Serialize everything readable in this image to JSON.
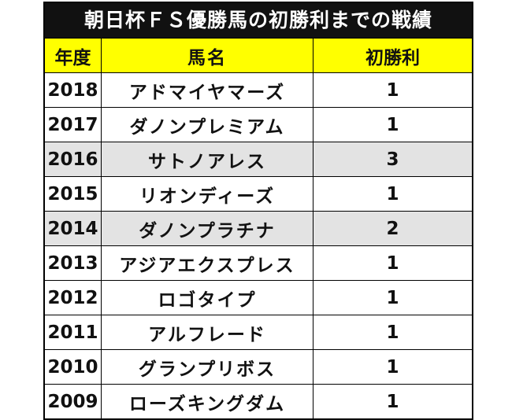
{
  "title": "朝日杯ＦＳ優勝馬の初勝利までの戦績",
  "colors": {
    "title_bg": "#111111",
    "header_bg": "#ffff00",
    "highlight_row_bg": "#e3e3e3"
  },
  "table": {
    "headers": [
      "年度",
      "馬名",
      "初勝利"
    ],
    "rows": [
      {
        "year": "2018",
        "horse": "アドマイヤマーズ",
        "first_win": "1",
        "highlight": false
      },
      {
        "year": "2017",
        "horse": "ダノンプレミアム",
        "first_win": "1",
        "highlight": false
      },
      {
        "year": "2016",
        "horse": "サトノアレス",
        "first_win": "3",
        "highlight": true
      },
      {
        "year": "2015",
        "horse": "リオンディーズ",
        "first_win": "1",
        "highlight": false
      },
      {
        "year": "2014",
        "horse": "ダノンプラチナ",
        "first_win": "2",
        "highlight": true
      },
      {
        "year": "2013",
        "horse": "アジアエクスプレス",
        "first_win": "1",
        "highlight": false
      },
      {
        "year": "2012",
        "horse": "ロゴタイプ",
        "first_win": "1",
        "highlight": false
      },
      {
        "year": "2011",
        "horse": "アルフレード",
        "first_win": "1",
        "highlight": false
      },
      {
        "year": "2010",
        "horse": "グランプリボス",
        "first_win": "1",
        "highlight": false
      },
      {
        "year": "2009",
        "horse": "ローズキングダム",
        "first_win": "1",
        "highlight": false
      }
    ]
  }
}
